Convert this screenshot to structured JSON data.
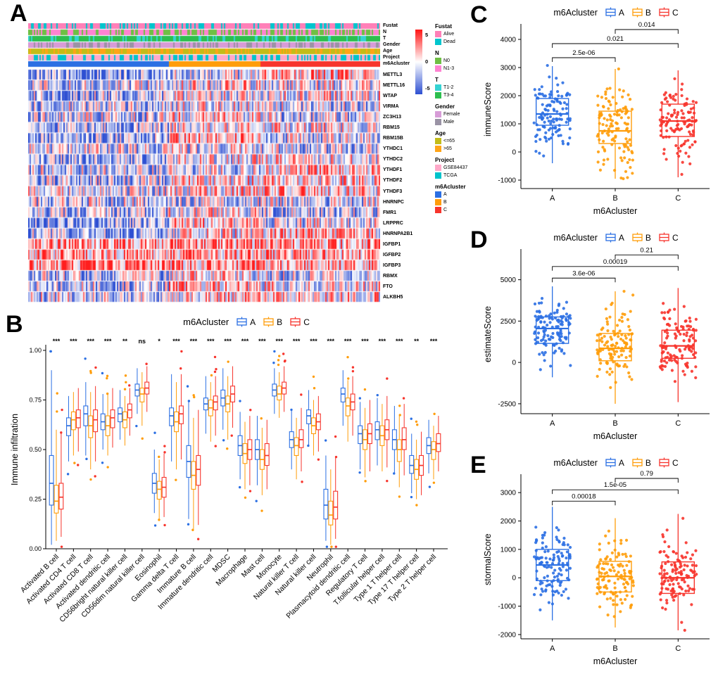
{
  "figure": {
    "panels": [
      "A",
      "B",
      "C",
      "D",
      "E"
    ]
  },
  "colors": {
    "clusterA": "#2b6fe3",
    "clusterB": "#ff9d0a",
    "clusterC": "#f7342c",
    "heat_high": "#ff1414",
    "heat_mid": "#ffffff",
    "heat_low": "#2d4fd2"
  },
  "chart_data": [
    {
      "id": "A",
      "type": "heatmap",
      "n_samples": 250,
      "cluster_fractions": [
        0.4,
        0.26,
        0.34
      ],
      "colorbar_ticks": [
        "5",
        "0",
        "-5"
      ],
      "genes": [
        "METTL3",
        "METTL16",
        "WTAP",
        "VIRMA",
        "ZC3H13",
        "RBM15",
        "RBM15B",
        "YTHDC1",
        "YTHDC2",
        "YTHDF1",
        "YTHDF2",
        "YTHDF3",
        "HNRNPC",
        "FMR1",
        "LRPPRC",
        "HNRNPA2B1",
        "IGFBP1",
        "IGFBP2",
        "IGFBP3",
        "RBMX",
        "FTO",
        "ALKBH5"
      ],
      "annotations": [
        {
          "name": "Fustat",
          "freq": [
            0.62,
            0.38
          ],
          "items": [
            {
              "label": "Alive",
              "color": "#ff80b8"
            },
            {
              "label": "Dead",
              "color": "#00c5cd"
            }
          ]
        },
        {
          "name": "N",
          "freq": [
            0.5,
            0.5
          ],
          "items": [
            {
              "label": "N0",
              "color": "#6fbf44"
            },
            {
              "label": "N1-3",
              "color": "#ff82d1"
            }
          ]
        },
        {
          "name": "T",
          "freq": [
            0.3,
            0.7
          ],
          "items": [
            {
              "label": "T1-2",
              "color": "#35d3d3"
            },
            {
              "label": "T3-4",
              "color": "#2dbe4e"
            }
          ]
        },
        {
          "name": "Gender",
          "freq": [
            0.65,
            0.35
          ],
          "items": [
            {
              "label": "Female",
              "color": "#d79cd7"
            },
            {
              "label": "Male",
              "color": "#9a93a5"
            }
          ]
        },
        {
          "name": "Age",
          "freq": [
            0.62,
            0.38
          ],
          "items": [
            {
              "label": "<=65",
              "color": "#c3bc18"
            },
            {
              "label": ">65",
              "color": "#ffa417"
            }
          ]
        },
        {
          "name": "Project",
          "freq": [
            0.54,
            0.46
          ],
          "items": [
            {
              "label": "GSE84437",
              "color": "#ffa9c9"
            },
            {
              "label": "TCGA",
              "color": "#00c3cb"
            }
          ]
        },
        {
          "name": "m6Acluster",
          "freq": [
            0.4,
            0.26,
            0.34
          ],
          "sorted": true,
          "items": [
            {
              "label": "A",
              "color": "#2b6fe3"
            },
            {
              "label": "B",
              "color": "#ff9d0a"
            },
            {
              "label": "C",
              "color": "#f7342c"
            }
          ]
        }
      ]
    },
    {
      "id": "B",
      "type": "grouped_boxplot",
      "legend_title": "m6Acluster",
      "groups": [
        "A",
        "B",
        "C"
      ],
      "ylabel": "Immune infiltration",
      "ylim": [
        0,
        1
      ],
      "yticks": [
        {
          "v": 0,
          "label": "0.00"
        },
        {
          "v": 0.25,
          "label": "0.25"
        },
        {
          "v": 0.5,
          "label": "0.50"
        },
        {
          "v": 0.75,
          "label": "0.75"
        },
        {
          "v": 1,
          "label": "1.00"
        }
      ],
      "categories": [
        "Activated B cell",
        "Activated CD4 T cell",
        "Activated CD8 T cell",
        "Activated dendritic cell",
        "CD56bright natural killer cell",
        "CD56dim natural killer cell",
        "Eosinophil",
        "Gamma delta T cell",
        "Immature B cell",
        "Immature dendritic cell",
        "MDSC",
        "Macrophage",
        "Mast cell",
        "Monocyte",
        "Natural killer T cell",
        "Natural killer cell",
        "Neutrophil",
        "Plasmacytoid dendritic cell",
        "Regulatory T cell",
        "T.follicular helper cell",
        "Type 1 T helper cell",
        "Type 17 T helper cell",
        "Type 2 T helper cell"
      ],
      "significance": [
        "***",
        "***",
        "***",
        "***",
        "**",
        "ns",
        "*",
        "***",
        "***",
        "***",
        "***",
        "***",
        "***",
        "***",
        "***",
        "***",
        "***",
        "***",
        "***",
        "***",
        "***",
        "**",
        "***"
      ],
      "series": [
        {
          "name": "A",
          "boxes": [
            [
              0.02,
              0.22,
              0.33,
              0.47,
              0.9
            ],
            [
              0.44,
              0.57,
              0.62,
              0.66,
              0.77
            ],
            [
              0.47,
              0.62,
              0.68,
              0.72,
              0.84
            ],
            [
              0.5,
              0.6,
              0.64,
              0.68,
              0.78
            ],
            [
              0.55,
              0.64,
              0.68,
              0.71,
              0.8
            ],
            [
              0.68,
              0.77,
              0.8,
              0.83,
              0.91
            ],
            [
              0.18,
              0.28,
              0.33,
              0.38,
              0.5
            ],
            [
              0.44,
              0.62,
              0.67,
              0.71,
              0.88
            ],
            [
              0.15,
              0.36,
              0.44,
              0.52,
              0.74
            ],
            [
              0.58,
              0.7,
              0.73,
              0.76,
              0.87
            ],
            [
              0.6,
              0.72,
              0.76,
              0.8,
              0.91
            ],
            [
              0.35,
              0.47,
              0.52,
              0.57,
              0.69
            ],
            [
              0.32,
              0.45,
              0.5,
              0.55,
              0.67
            ],
            [
              0.68,
              0.77,
              0.8,
              0.83,
              0.91
            ],
            [
              0.4,
              0.51,
              0.55,
              0.59,
              0.7
            ],
            [
              0.52,
              0.63,
              0.67,
              0.7,
              0.8
            ],
            [
              0.04,
              0.15,
              0.22,
              0.3,
              0.47
            ],
            [
              0.62,
              0.74,
              0.78,
              0.81,
              0.9
            ],
            [
              0.4,
              0.53,
              0.58,
              0.62,
              0.74
            ],
            [
              0.42,
              0.55,
              0.6,
              0.64,
              0.76
            ],
            [
              0.38,
              0.5,
              0.55,
              0.6,
              0.72
            ],
            [
              0.28,
              0.38,
              0.42,
              0.47,
              0.58
            ],
            [
              0.38,
              0.48,
              0.52,
              0.56,
              0.65
            ]
          ]
        },
        {
          "name": "B",
          "boxes": [
            [
              0.04,
              0.18,
              0.24,
              0.32,
              0.6
            ],
            [
              0.47,
              0.6,
              0.65,
              0.69,
              0.79
            ],
            [
              0.4,
              0.56,
              0.62,
              0.67,
              0.79
            ],
            [
              0.47,
              0.57,
              0.62,
              0.67,
              0.78
            ],
            [
              0.52,
              0.61,
              0.65,
              0.69,
              0.77
            ],
            [
              0.62,
              0.74,
              0.78,
              0.81,
              0.89
            ],
            [
              0.15,
              0.25,
              0.3,
              0.34,
              0.45
            ],
            [
              0.4,
              0.59,
              0.64,
              0.69,
              0.84
            ],
            [
              0.1,
              0.3,
              0.37,
              0.44,
              0.66
            ],
            [
              0.54,
              0.67,
              0.71,
              0.75,
              0.84
            ],
            [
              0.55,
              0.69,
              0.73,
              0.77,
              0.87
            ],
            [
              0.3,
              0.43,
              0.48,
              0.53,
              0.64
            ],
            [
              0.27,
              0.4,
              0.45,
              0.5,
              0.61
            ],
            [
              0.66,
              0.75,
              0.78,
              0.82,
              0.89
            ],
            [
              0.35,
              0.47,
              0.52,
              0.56,
              0.66
            ],
            [
              0.47,
              0.58,
              0.62,
              0.66,
              0.75
            ],
            [
              0.02,
              0.12,
              0.17,
              0.24,
              0.4
            ],
            [
              0.54,
              0.67,
              0.72,
              0.76,
              0.85
            ],
            [
              0.36,
              0.5,
              0.55,
              0.6,
              0.71
            ],
            [
              0.39,
              0.52,
              0.57,
              0.62,
              0.73
            ],
            [
              0.31,
              0.44,
              0.5,
              0.55,
              0.67
            ],
            [
              0.25,
              0.35,
              0.4,
              0.45,
              0.55
            ],
            [
              0.35,
              0.45,
              0.5,
              0.54,
              0.62
            ]
          ]
        },
        {
          "name": "C",
          "boxes": [
            [
              0.06,
              0.2,
              0.26,
              0.33,
              0.58
            ],
            [
              0.49,
              0.61,
              0.66,
              0.7,
              0.81
            ],
            [
              0.44,
              0.59,
              0.65,
              0.7,
              0.82
            ],
            [
              0.51,
              0.61,
              0.66,
              0.7,
              0.81
            ],
            [
              0.57,
              0.66,
              0.7,
              0.73,
              0.81
            ],
            [
              0.69,
              0.78,
              0.81,
              0.84,
              0.92
            ],
            [
              0.16,
              0.26,
              0.31,
              0.36,
              0.48
            ],
            [
              0.45,
              0.63,
              0.68,
              0.72,
              0.88
            ],
            [
              0.12,
              0.32,
              0.4,
              0.47,
              0.7
            ],
            [
              0.57,
              0.7,
              0.74,
              0.77,
              0.87
            ],
            [
              0.61,
              0.74,
              0.78,
              0.82,
              0.92
            ],
            [
              0.32,
              0.45,
              0.5,
              0.55,
              0.67
            ],
            [
              0.3,
              0.42,
              0.47,
              0.53,
              0.65
            ],
            [
              0.69,
              0.78,
              0.81,
              0.84,
              0.92
            ],
            [
              0.39,
              0.51,
              0.55,
              0.6,
              0.71
            ],
            [
              0.49,
              0.6,
              0.64,
              0.68,
              0.77
            ],
            [
              0.05,
              0.15,
              0.21,
              0.29,
              0.46
            ],
            [
              0.57,
              0.7,
              0.74,
              0.78,
              0.87
            ],
            [
              0.39,
              0.53,
              0.58,
              0.63,
              0.75
            ],
            [
              0.41,
              0.55,
              0.6,
              0.65,
              0.77
            ],
            [
              0.37,
              0.5,
              0.55,
              0.61,
              0.73
            ],
            [
              0.27,
              0.37,
              0.42,
              0.47,
              0.59
            ],
            [
              0.39,
              0.49,
              0.53,
              0.58,
              0.67
            ]
          ]
        }
      ]
    },
    {
      "id": "C",
      "type": "box_jitter",
      "legend_title": "m6Acluster",
      "ylabel": "immuneScore",
      "xlabel": "m6Acluster",
      "categories": [
        "A",
        "B",
        "C"
      ],
      "yticks": [
        -1000,
        0,
        1000,
        2000,
        3000,
        4000
      ],
      "ylim": [
        -1300,
        4400
      ],
      "boxes": {
        "A": [
          -400,
          950,
          1350,
          1900,
          3050
        ],
        "B": [
          -950,
          300,
          750,
          1450,
          2950
        ],
        "C": [
          -900,
          550,
          1100,
          1700,
          2900
        ]
      },
      "points": {
        "A": {
          "n": 120,
          "mean": 1400,
          "sd": 650,
          "min": -800,
          "max": 3100
        },
        "B": {
          "n": 120,
          "mean": 880,
          "sd": 780,
          "min": -950,
          "max": 2950
        },
        "C": {
          "n": 120,
          "mean": 1120,
          "sd": 720,
          "min": -900,
          "max": 2900
        }
      },
      "comparisons": [
        {
          "a": 0,
          "b": 1,
          "label": "2.5e-06",
          "y": 3350
        },
        {
          "a": 0,
          "b": 2,
          "label": "0.021",
          "y": 3850
        },
        {
          "a": 1,
          "b": 2,
          "label": "0.014",
          "y": 4350
        }
      ]
    },
    {
      "id": "D",
      "type": "box_jitter",
      "legend_title": "m6Acluster",
      "ylabel": "estimateScore",
      "xlabel": "m6Acluster",
      "categories": [
        "A",
        "B",
        "C"
      ],
      "yticks": [
        -2500,
        0,
        2500,
        5000
      ],
      "ylim": [
        -3100,
        6600
      ],
      "boxes": {
        "A": [
          -900,
          1150,
          2050,
          2750,
          4600
        ],
        "B": [
          -2500,
          100,
          850,
          1750,
          4300
        ],
        "C": [
          -2400,
          250,
          1000,
          1950,
          4500
        ]
      },
      "points": {
        "A": {
          "n": 120,
          "mean": 1900,
          "sd": 1000,
          "min": -1500,
          "max": 4700
        },
        "B": {
          "n": 120,
          "mean": 900,
          "sd": 1150,
          "min": -2450,
          "max": 4300
        },
        "C": {
          "n": 120,
          "mean": 1100,
          "sd": 1100,
          "min": -2350,
          "max": 4500
        }
      },
      "comparisons": [
        {
          "a": 0,
          "b": 1,
          "label": "3.6e-06",
          "y": 5100
        },
        {
          "a": 0,
          "b": 2,
          "label": "0.00019",
          "y": 5800
        },
        {
          "a": 1,
          "b": 2,
          "label": "0.21",
          "y": 6500
        }
      ]
    },
    {
      "id": "E",
      "type": "box_jitter",
      "legend_title": "m6Acluster",
      "ylabel": "stormalScore",
      "xlabel": "m6Acluster",
      "categories": [
        "A",
        "B",
        "C"
      ],
      "yticks": [
        -2000,
        -1000,
        0,
        1000,
        2000,
        3000
      ],
      "ylim": [
        -2150,
        3500
      ],
      "boxes": {
        "A": [
          -1500,
          -100,
          450,
          1000,
          2500
        ],
        "B": [
          -1750,
          -500,
          50,
          580,
          2100
        ],
        "C": [
          -1850,
          -550,
          0,
          560,
          2250
        ]
      },
      "points": {
        "A": {
          "n": 120,
          "mean": 450,
          "sd": 700,
          "min": -1600,
          "max": 2600
        },
        "B": {
          "n": 120,
          "mean": 30,
          "sd": 680,
          "min": -1800,
          "max": 2300
        },
        "C": {
          "n": 120,
          "mean": 20,
          "sd": 700,
          "min": -1850,
          "max": 2400
        }
      },
      "comparisons": [
        {
          "a": 0,
          "b": 1,
          "label": "0.00018",
          "y": 2700
        },
        {
          "a": 0,
          "b": 2,
          "label": "1.5e-05",
          "y": 3100
        },
        {
          "a": 1,
          "b": 2,
          "label": "0.79",
          "y": 3500
        }
      ]
    }
  ]
}
